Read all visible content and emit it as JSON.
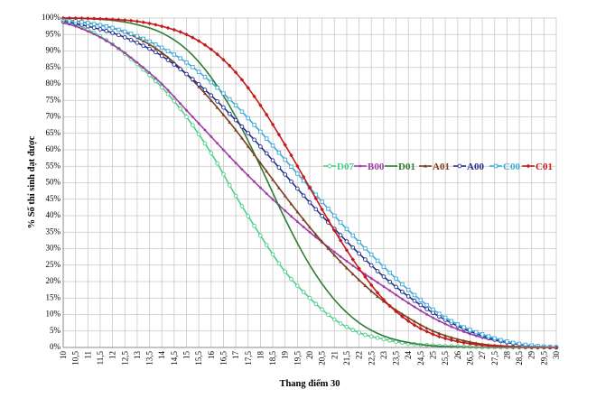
{
  "chart_data": {
    "type": "line",
    "title": "",
    "xlabel": "Thang điểm 30",
    "ylabel": "% Số thí sinh đạt được",
    "x_ticks": [
      "10",
      "10,5",
      "11",
      "11,5",
      "12",
      "12,5",
      "13",
      "13,5",
      "14",
      "14,5",
      "15",
      "15,5",
      "16",
      "16,5",
      "17",
      "17,5",
      "18",
      "18,5",
      "19",
      "19,5",
      "20",
      "20,5",
      "21",
      "21,5",
      "22",
      "22,5",
      "23",
      "23,5",
      "24",
      "24,5",
      "25",
      "25,5",
      "26",
      "26,5",
      "27",
      "27,5",
      "28",
      "28,5",
      "29",
      "29,5",
      "30"
    ],
    "y_ticks": [
      "0%",
      "5%",
      "10%",
      "15%",
      "20%",
      "25%",
      "30%",
      "35%",
      "40%",
      "45%",
      "50%",
      "55%",
      "60%",
      "65%",
      "70%",
      "75%",
      "80%",
      "85%",
      "90%",
      "95%",
      "100%"
    ],
    "xlim": [
      10,
      30
    ],
    "ylim": [
      0,
      100
    ],
    "grid": true,
    "legend_position": "right-middle",
    "x": [
      10,
      11,
      12,
      13,
      14,
      15,
      16,
      17,
      18,
      19,
      20,
      21,
      22,
      23,
      24,
      25,
      26,
      27,
      28,
      29,
      30
    ],
    "series": [
      {
        "name": "D07",
        "color": "#4ccf8a",
        "marker": "open-circle",
        "values": [
          99,
          96.5,
          92,
          86,
          79,
          70,
          59,
          46,
          34,
          23,
          15,
          8.5,
          4.5,
          2.5,
          1.2,
          0.6,
          0.3,
          0.1,
          0,
          0,
          0
        ]
      },
      {
        "name": "B00",
        "color": "#a13ca6",
        "marker": "dot",
        "values": [
          98.5,
          96,
          92,
          86.5,
          80,
          72,
          64,
          56,
          48.5,
          41.5,
          35,
          29,
          23.5,
          18.5,
          13.5,
          9,
          5.5,
          3,
          1.5,
          0.5,
          0
        ]
      },
      {
        "name": "D01",
        "color": "#2e7d32",
        "marker": "none",
        "values": [
          100,
          99.8,
          99.3,
          98,
          95.5,
          90.5,
          82,
          70,
          55,
          39,
          25,
          14.5,
          7.5,
          3.5,
          1.5,
          0.5,
          0.2,
          0,
          0,
          0,
          0
        ]
      },
      {
        "name": "A01",
        "color": "#7b3f1e",
        "marker": "triangle",
        "values": [
          99.5,
          98.5,
          97,
          94,
          89.5,
          83,
          75,
          66,
          56,
          46,
          36.5,
          28,
          20.5,
          14,
          9,
          5,
          2.5,
          1,
          0.4,
          0.1,
          0
        ]
      },
      {
        "name": "A00",
        "color": "#1f2e8c",
        "marker": "open-circle",
        "values": [
          99,
          97.5,
          95.5,
          92.5,
          88.5,
          83,
          76.5,
          69,
          61,
          52.5,
          44,
          36,
          28.5,
          21.5,
          15.5,
          10.5,
          6.5,
          3.5,
          1.5,
          0.5,
          0
        ]
      },
      {
        "name": "C00",
        "color": "#3ea9d8",
        "marker": "open-square",
        "values": [
          99.5,
          98.5,
          97,
          94.5,
          91,
          86.5,
          80.5,
          73.5,
          65.5,
          57,
          48.5,
          40,
          32,
          24.5,
          17.5,
          11.5,
          7,
          4,
          1.8,
          0.6,
          0.1
        ]
      },
      {
        "name": "C01",
        "color": "#c41a1a",
        "marker": "diamond",
        "values": [
          100,
          99.9,
          99.6,
          99,
          97.5,
          95,
          90.5,
          83.5,
          73.5,
          61.5,
          48.5,
          35.5,
          24,
          14.5,
          8,
          4,
          1.8,
          0.7,
          0.2,
          0,
          0
        ]
      }
    ]
  }
}
